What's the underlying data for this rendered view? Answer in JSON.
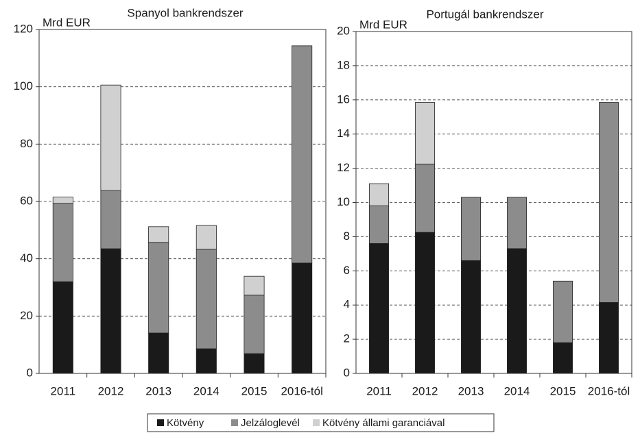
{
  "chart_data": [
    {
      "type": "bar",
      "stacked": true,
      "title": "Spanyol bankrendszer",
      "y_label": "Mrd EUR",
      "categories": [
        "2011",
        "2012",
        "2013",
        "2014",
        "2015",
        "2016-tól"
      ],
      "series": [
        {
          "name": "Kötvény",
          "color": "#1a1a1a",
          "values": [
            32,
            43.5,
            14.1,
            8.6,
            6.9,
            38.5
          ]
        },
        {
          "name": "Jelzáloglevél",
          "color": "#8c8c8c",
          "values": [
            27.3,
            20.3,
            31.6,
            34.7,
            20.4,
            75.8
          ]
        },
        {
          "name": "Kötvény állami garanciával",
          "color": "#d0d0d0",
          "values": [
            2.2,
            36.8,
            5.5,
            8.3,
            6.6,
            0
          ]
        }
      ],
      "ylim": [
        0,
        120
      ],
      "yticks": [
        0,
        20,
        40,
        60,
        80,
        100,
        120
      ],
      "grid": true
    },
    {
      "type": "bar",
      "stacked": true,
      "title": "Portugál bankrendszer",
      "y_label": "Mrd EUR",
      "categories": [
        "2011",
        "2012",
        "2013",
        "2014",
        "2015",
        "2016-tól"
      ],
      "series": [
        {
          "color": "#1a1a1a",
          "values": [
            7.6,
            8.25,
            6.6,
            7.3,
            1.8,
            4.15
          ]
        },
        {
          "color": "#8c8c8c",
          "values": [
            2.2,
            4,
            3.7,
            3,
            3.6,
            11.7
          ]
        },
        {
          "color": "#d0d0d0",
          "values": [
            1.3,
            3.6,
            0,
            0,
            0,
            0
          ]
        }
      ],
      "ylim": [
        0,
        20
      ],
      "yticks": [
        0,
        2,
        4,
        6,
        8,
        10,
        12,
        14,
        16,
        18,
        20
      ],
      "grid": true
    }
  ]
}
